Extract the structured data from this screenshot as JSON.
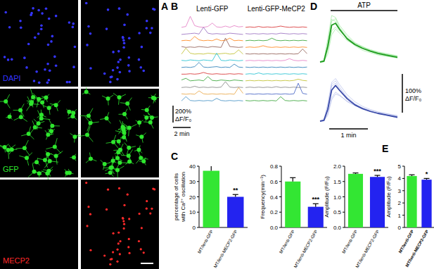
{
  "panel_labels": [
    "A",
    "B",
    "C",
    "D",
    "E"
  ],
  "panel_a": {
    "rows": [
      {
        "label": "DAPI",
        "color": "#3535ff"
      },
      {
        "label": "GFP",
        "color": "#2ee62e"
      },
      {
        "label": "MECP2",
        "color": "#ff2a2a"
      }
    ]
  },
  "chart_data": [
    {
      "type": "line",
      "title": "Lenti-GFP",
      "tick_labels": false,
      "x": [
        0,
        0.5,
        1,
        1.5,
        2,
        2.5,
        3,
        3.5,
        4,
        4.5,
        5,
        5.5,
        6,
        6.5,
        7
      ],
      "scale_x": {
        "value": 2,
        "label": "2 min"
      },
      "scale_y": {
        "value": 200,
        "label": "200%",
        "unit_label": "ΔF/F₀"
      },
      "series": [
        {
          "color": "#e377c2",
          "values": [
            10,
            20,
            140,
            30,
            15,
            10,
            20,
            60,
            15,
            10,
            25,
            10,
            30,
            15,
            20
          ]
        },
        {
          "color": "#9467bd",
          "values": [
            5,
            10,
            15,
            20,
            10,
            90,
            20,
            10,
            15,
            10,
            10,
            20,
            15,
            10,
            5
          ]
        },
        {
          "color": "#ff7f0e",
          "values": [
            10,
            15,
            10,
            60,
            20,
            10,
            15,
            10,
            30,
            10,
            15,
            40,
            10,
            15,
            10
          ]
        },
        {
          "color": "#8c564b",
          "values": [
            20,
            10,
            15,
            10,
            20,
            15,
            10,
            20,
            15,
            10,
            120,
            20,
            15,
            10,
            15
          ]
        },
        {
          "color": "#bcbd22",
          "values": [
            10,
            80,
            20,
            10,
            15,
            10,
            20,
            15,
            10,
            15,
            20,
            10,
            15,
            60,
            10
          ]
        },
        {
          "color": "#17becf",
          "values": [
            15,
            10,
            20,
            15,
            10,
            20,
            15,
            10,
            100,
            15,
            10,
            20,
            15,
            10,
            15
          ]
        },
        {
          "color": "#1f77b4",
          "values": [
            10,
            15,
            10,
            20,
            70,
            15,
            10,
            15,
            20,
            10,
            15,
            10,
            50,
            15,
            10
          ]
        },
        {
          "color": "#d62728",
          "values": [
            10,
            10,
            15,
            10,
            15,
            30,
            15,
            10,
            15,
            10,
            10,
            15,
            10,
            15,
            10
          ]
        },
        {
          "color": "#2ca02c",
          "values": [
            20,
            40,
            10,
            15,
            20,
            10,
            60,
            15,
            10,
            20,
            15,
            10,
            20,
            15,
            10
          ]
        },
        {
          "color": "#7f7f7f",
          "values": [
            10,
            15,
            10,
            25,
            10,
            15,
            10,
            15,
            10,
            15,
            80,
            15,
            10,
            15,
            10
          ]
        },
        {
          "color": "#e8a33d",
          "values": [
            15,
            10,
            15,
            10,
            50,
            15,
            10,
            15,
            10,
            15,
            10,
            15,
            10,
            90,
            20
          ]
        },
        {
          "color": "#3b8bc2",
          "values": [
            10,
            60,
            15,
            10,
            15,
            10,
            15,
            10,
            40,
            15,
            10,
            15,
            10,
            15,
            10
          ]
        }
      ]
    },
    {
      "type": "line",
      "title": "Lenti-GFP-MeCP2",
      "tick_labels": false,
      "x": [
        0,
        0.5,
        1,
        1.5,
        2,
        2.5,
        3,
        3.5,
        4,
        4.5,
        5,
        5.5,
        6,
        6.5,
        7
      ],
      "series": [
        {
          "color": "#d62728",
          "values": [
            10,
            15,
            10,
            20,
            10,
            15,
            10,
            15,
            25,
            15,
            10,
            15,
            10,
            15,
            10
          ]
        },
        {
          "color": "#9467bd",
          "values": [
            15,
            10,
            15,
            10,
            15,
            10,
            15,
            10,
            20,
            15,
            10,
            15,
            10,
            15,
            10
          ]
        },
        {
          "color": "#2ca02c",
          "values": [
            10,
            15,
            10,
            15,
            10,
            15,
            40,
            15,
            10,
            15,
            10,
            15,
            10,
            15,
            10
          ]
        },
        {
          "color": "#ff7f0e",
          "values": [
            10,
            15,
            10,
            15,
            30,
            15,
            10,
            15,
            10,
            15,
            10,
            15,
            10,
            15,
            10
          ]
        },
        {
          "color": "#8c564b",
          "values": [
            15,
            10,
            15,
            10,
            15,
            10,
            15,
            10,
            15,
            10,
            15,
            10,
            15,
            70,
            15
          ]
        },
        {
          "color": "#e377c2",
          "values": [
            10,
            15,
            10,
            15,
            10,
            15,
            10,
            15,
            10,
            15,
            35,
            15,
            10,
            15,
            10
          ]
        },
        {
          "color": "#1f77b4",
          "values": [
            15,
            10,
            15,
            10,
            15,
            10,
            15,
            10,
            15,
            10,
            15,
            10,
            15,
            10,
            15
          ]
        },
        {
          "color": "#17becf",
          "values": [
            10,
            15,
            10,
            25,
            10,
            15,
            10,
            15,
            10,
            15,
            10,
            15,
            10,
            15,
            10
          ]
        },
        {
          "color": "#bcbd22",
          "values": [
            10,
            15,
            10,
            15,
            10,
            15,
            10,
            15,
            10,
            15,
            10,
            15,
            30,
            15,
            10
          ]
        },
        {
          "color": "#7f7f7f",
          "values": [
            10,
            15,
            10,
            15,
            10,
            15,
            10,
            20,
            10,
            15,
            10,
            15,
            10,
            15,
            10
          ]
        },
        {
          "color": "#3b5bc2",
          "values": [
            10,
            15,
            10,
            15,
            10,
            15,
            10,
            15,
            10,
            15,
            10,
            15,
            140,
            20,
            10
          ]
        },
        {
          "color": "#2ca02c",
          "values": [
            15,
            10,
            15,
            10,
            15,
            10,
            15,
            10,
            60,
            15,
            10,
            15,
            10,
            15,
            10
          ]
        }
      ]
    },
    {
      "type": "line",
      "title": "ATP",
      "tick_labels": false,
      "x": [
        0,
        0.1,
        0.2,
        0.3,
        0.4,
        0.5,
        0.7,
        0.9,
        1.1,
        1.3,
        1.5,
        1.7,
        2
      ],
      "series": [
        {
          "color": "#8fe68f",
          "values": [
            0,
            5,
            60,
            120,
            115,
            95,
            70,
            50,
            40,
            30,
            25,
            20,
            15
          ]
        },
        {
          "color": "#8fe68f",
          "values": [
            0,
            0,
            30,
            80,
            90,
            80,
            62,
            48,
            38,
            30,
            24,
            20,
            14
          ]
        },
        {
          "color": "#8fe68f",
          "values": [
            0,
            3,
            50,
            110,
            105,
            88,
            58,
            42,
            30,
            24,
            18,
            15,
            10
          ]
        },
        {
          "color": "#8fe68f",
          "values": [
            0,
            1,
            20,
            70,
            85,
            75,
            55,
            45,
            38,
            32,
            26,
            22,
            16
          ]
        },
        {
          "color": "#8fe68f",
          "values": [
            0,
            4,
            45,
            105,
            112,
            90,
            65,
            48,
            36,
            27,
            20,
            16,
            11
          ]
        },
        {
          "color": "#1e9b1e",
          "values": [
            0,
            2,
            40,
            95,
            100,
            85,
            60,
            45,
            35,
            28,
            22,
            18,
            12
          ]
        }
      ]
    },
    {
      "type": "line",
      "tick_labels": false,
      "x": [
        0,
        0.1,
        0.2,
        0.3,
        0.4,
        0.5,
        0.7,
        0.9,
        1.1,
        1.3,
        1.5,
        1.7,
        2
      ],
      "scale_x": {
        "value": 1,
        "label": "1 min"
      },
      "scale_y": {
        "value": 100,
        "label": "100%",
        "unit_label": "ΔF/F₀"
      },
      "series": [
        {
          "color": "#a9b3e8",
          "values": [
            0,
            4,
            45,
            100,
            110,
            95,
            68,
            50,
            38,
            30,
            24,
            20,
            14
          ]
        },
        {
          "color": "#a9b3e8",
          "values": [
            0,
            0,
            20,
            60,
            75,
            68,
            50,
            40,
            32,
            26,
            20,
            16,
            12
          ]
        },
        {
          "color": "#a9b3e8",
          "values": [
            0,
            3,
            35,
            90,
            98,
            84,
            60,
            44,
            33,
            25,
            19,
            15,
            9
          ]
        },
        {
          "color": "#a9b3e8",
          "values": [
            0,
            1,
            15,
            55,
            70,
            66,
            52,
            42,
            34,
            28,
            23,
            19,
            14
          ]
        },
        {
          "color": "#a9b3e8",
          "values": [
            0,
            2,
            38,
            95,
            104,
            88,
            62,
            45,
            34,
            26,
            20,
            16,
            10
          ]
        },
        {
          "color": "#3a4aa8",
          "values": [
            0,
            2,
            30,
            80,
            92,
            80,
            58,
            42,
            32,
            25,
            20,
            16,
            10
          ]
        }
      ]
    },
    {
      "type": "bar",
      "ylabel": [
        "percentage of cells",
        "with Ca²⁺ oscillation"
      ],
      "categories": [
        "MT/lenti-GFP",
        "MT/lenti-MECP2-GFP"
      ],
      "values": [
        37,
        20
      ],
      "errors": [
        3.5,
        1.5
      ],
      "significance": [
        null,
        "**"
      ],
      "colors": [
        "#33e633",
        "#2323f0"
      ],
      "ylim": [
        0,
        40
      ],
      "yticks": [
        0,
        10,
        20,
        30,
        40
      ]
    },
    {
      "type": "bar",
      "ylabel": [
        "Frequency(min⁻¹)"
      ],
      "categories": [
        "MT/lenti-GFP",
        "MT/lenti-MECP2-GFP"
      ],
      "values": [
        0.6,
        0.27
      ],
      "errors": [
        0.05,
        0.04
      ],
      "significance": [
        null,
        "***"
      ],
      "colors": [
        "#33e633",
        "#2323f0"
      ],
      "ylim": [
        0,
        0.8
      ],
      "yticks": [
        {
          "value": 0,
          "label": "0.0"
        },
        0.2,
        0.4,
        0.6,
        0.8
      ]
    },
    {
      "type": "bar",
      "ylabel": [
        "Amplitude (F/F₀)"
      ],
      "categories": [
        "MT/lenti-GFP",
        "MT/lenti-MECP2-GFP"
      ],
      "values": [
        1.75,
        1.65
      ],
      "errors": [
        0.03,
        0.05
      ],
      "significance": [
        null,
        "***"
      ],
      "colors": [
        "#33e633",
        "#2323f0"
      ],
      "ylim": [
        0,
        2
      ],
      "yticks": [
        {
          "value": 0,
          "label": "0.0"
        },
        0.5,
        {
          "value": 1,
          "label": "1.0"
        },
        1.5,
        {
          "value": 2,
          "label": "2.0"
        }
      ]
    },
    {
      "type": "bar",
      "ylabel": [
        "Amplitude (F/F₀)"
      ],
      "categories": [
        "MT/lenti-GFP",
        "MT/lenti-MECP2-GFP"
      ],
      "values": [
        4.2,
        3.9
      ],
      "errors": [
        0.1,
        0.1
      ],
      "significance": [
        null,
        "*"
      ],
      "colors": [
        "#33e633",
        "#2323f0"
      ],
      "ylim": [
        0,
        5
      ],
      "yticks": [
        0,
        1,
        2,
        3,
        4,
        5
      ]
    }
  ]
}
